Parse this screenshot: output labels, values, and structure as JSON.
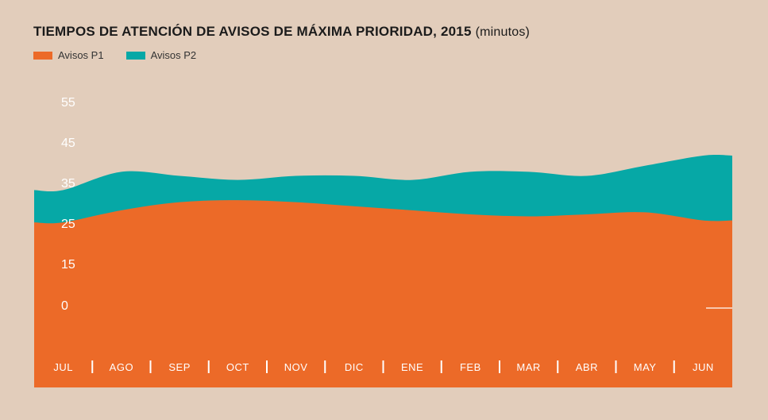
{
  "header": {
    "title": "TIEMPOS DE ATENCIÓN DE AVISOS DE MÁXIMA PRIORIDAD, 2015",
    "unit": "(minutos)"
  },
  "legend": [
    {
      "label": "Avisos P1",
      "color": "#ec6a28"
    },
    {
      "label": "Avisos P2",
      "color": "#06a8a6"
    }
  ],
  "chart_data": {
    "type": "area",
    "stacked": true,
    "categories": [
      "JUL",
      "AGO",
      "SEP",
      "OCT",
      "NOV",
      "DIC",
      "ENE",
      "FEB",
      "MAR",
      "ABR",
      "MAY",
      "JUN"
    ],
    "y_ticks": [
      "55",
      "45",
      "35",
      "25",
      "15",
      "0"
    ],
    "ylim": [
      0,
      55
    ],
    "series": [
      {
        "name": "Avisos P1",
        "color": "#ec6a28",
        "values": [
          23.5,
          26.5,
          28.5,
          29,
          28.5,
          27.5,
          26.5,
          25.5,
          25,
          25.5,
          26,
          24
        ]
      },
      {
        "name": "Avisos P2",
        "color": "#06a8a6",
        "values": [
          8,
          9.5,
          6.5,
          5,
          6.5,
          7.5,
          7.5,
          10.5,
          11,
          9.5,
          11.5,
          16
        ]
      }
    ],
    "legend_position": "top-left",
    "grid": false
  }
}
